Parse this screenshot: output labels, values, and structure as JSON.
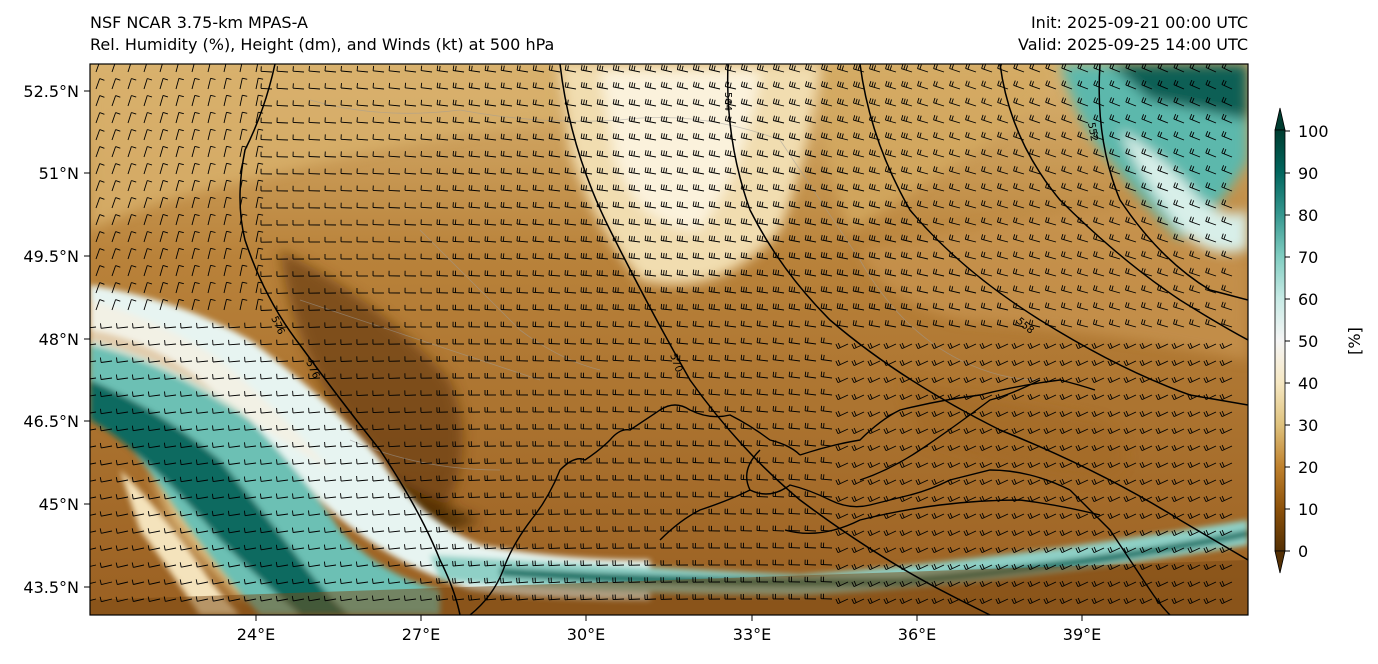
{
  "header": {
    "left_line1": "NSF NCAR 3.75-km MPAS-A",
    "left_line2": "Rel. Humidity (%), Height (dm), and Winds (kt) at 500 hPa",
    "right_line1": "Init: 2025-09-21 00:00 UTC",
    "right_line2": "Valid: 2025-09-25 14:00 UTC"
  },
  "map": {
    "lon_ticks": [
      "24°E",
      "27°E",
      "30°E",
      "33°E",
      "36°E",
      "39°E"
    ],
    "lat_ticks": [
      "52.5°N",
      "51°N",
      "49.5°N",
      "48°N",
      "46.5°N",
      "45°N",
      "43.5°N"
    ],
    "contour_labels": [
      "576",
      "576",
      "570",
      "564",
      "558",
      "552"
    ]
  },
  "colorbar": {
    "ticks": [
      "100",
      "90",
      "80",
      "70",
      "60",
      "50",
      "40",
      "30",
      "20",
      "10",
      "0"
    ],
    "unit_label": "[%]",
    "colors": [
      "#543005",
      "#8c510a",
      "#bf812d",
      "#dfc27d",
      "#f6e8c3",
      "#f5f5f5",
      "#c7eae5",
      "#80cdc1",
      "#35978f",
      "#01665e",
      "#003c30"
    ]
  }
}
